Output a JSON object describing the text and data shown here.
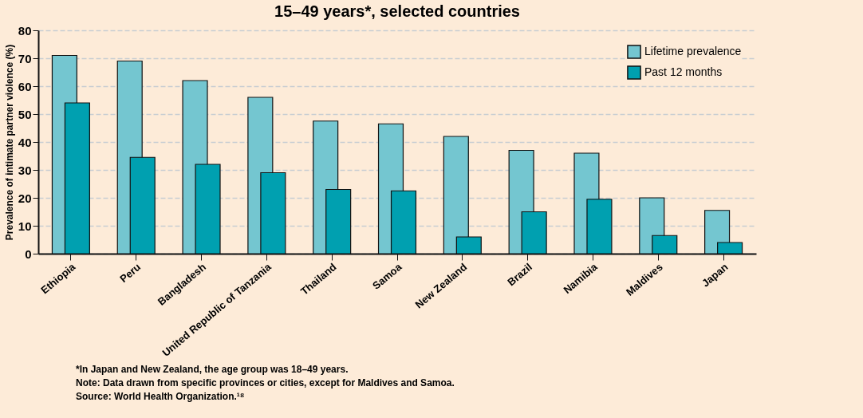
{
  "chart_data": {
    "type": "bar",
    "title": "15–49 years*, selected countries",
    "ylabel": "Prevalence of intimate partner violence (%)",
    "categories": [
      "Ethiopia",
      "Peru",
      "Bangladesh",
      "United Republic of Tanzania",
      "Thailand",
      "Samoa",
      "New Zealand",
      "Brazil",
      "Namibia",
      "Maldives",
      "Japan"
    ],
    "series": [
      {
        "name": "Lifetime prevalence",
        "color": "#74c6d0",
        "values": [
          71,
          69,
          62,
          56,
          47.5,
          46.5,
          42,
          37,
          36,
          20,
          15.5
        ]
      },
      {
        "name": "Past 12 months",
        "color": "#00a0b0",
        "values": [
          54,
          34.5,
          32,
          29,
          23,
          22.5,
          6,
          15,
          19.5,
          6.5,
          4
        ]
      }
    ],
    "ylim": [
      0,
      80
    ],
    "yticks": [
      0,
      10,
      20,
      30,
      40,
      50,
      60,
      70,
      80
    ],
    "grid": "y",
    "legend": "top right",
    "annotations": [
      "*In Japan and New Zealand, the age group was 18–49 years.",
      "Note: Data drawn from specific provinces or cities, except for Maldives and Samoa.",
      "Source: World Health Organization.¹⁸"
    ]
  }
}
